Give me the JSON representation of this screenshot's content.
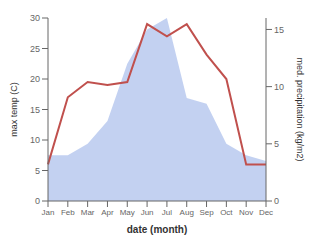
{
  "chart_data": {
    "type": "line",
    "xlabel": "date (month)",
    "ylabel": "max temp (C)",
    "y2label": "med. precipitation (kg/m2)",
    "categories": [
      "Jan",
      "Feb",
      "Mar",
      "Apr",
      "May",
      "Jun",
      "Jul",
      "Aug",
      "Sep",
      "Oct",
      "Nov",
      "Dec"
    ],
    "series": [
      {
        "type": "area",
        "color": "#b8c9ef",
        "axis": "y2",
        "values": [
          4,
          4,
          5,
          7,
          12,
          15,
          16,
          9,
          8.5,
          5,
          4,
          3.5
        ]
      },
      {
        "type": "line",
        "color": "#c0504d",
        "values": [
          6,
          17,
          19.5,
          19,
          19.5,
          29,
          27,
          29,
          24,
          20,
          6,
          6
        ]
      }
    ],
    "ylim": [
      0,
      30
    ],
    "yticks": [
      0,
      5,
      10,
      15,
      20,
      25,
      30
    ],
    "y2lim": [
      0,
      16
    ],
    "y2ticks": [
      0,
      5,
      10,
      15
    ]
  }
}
